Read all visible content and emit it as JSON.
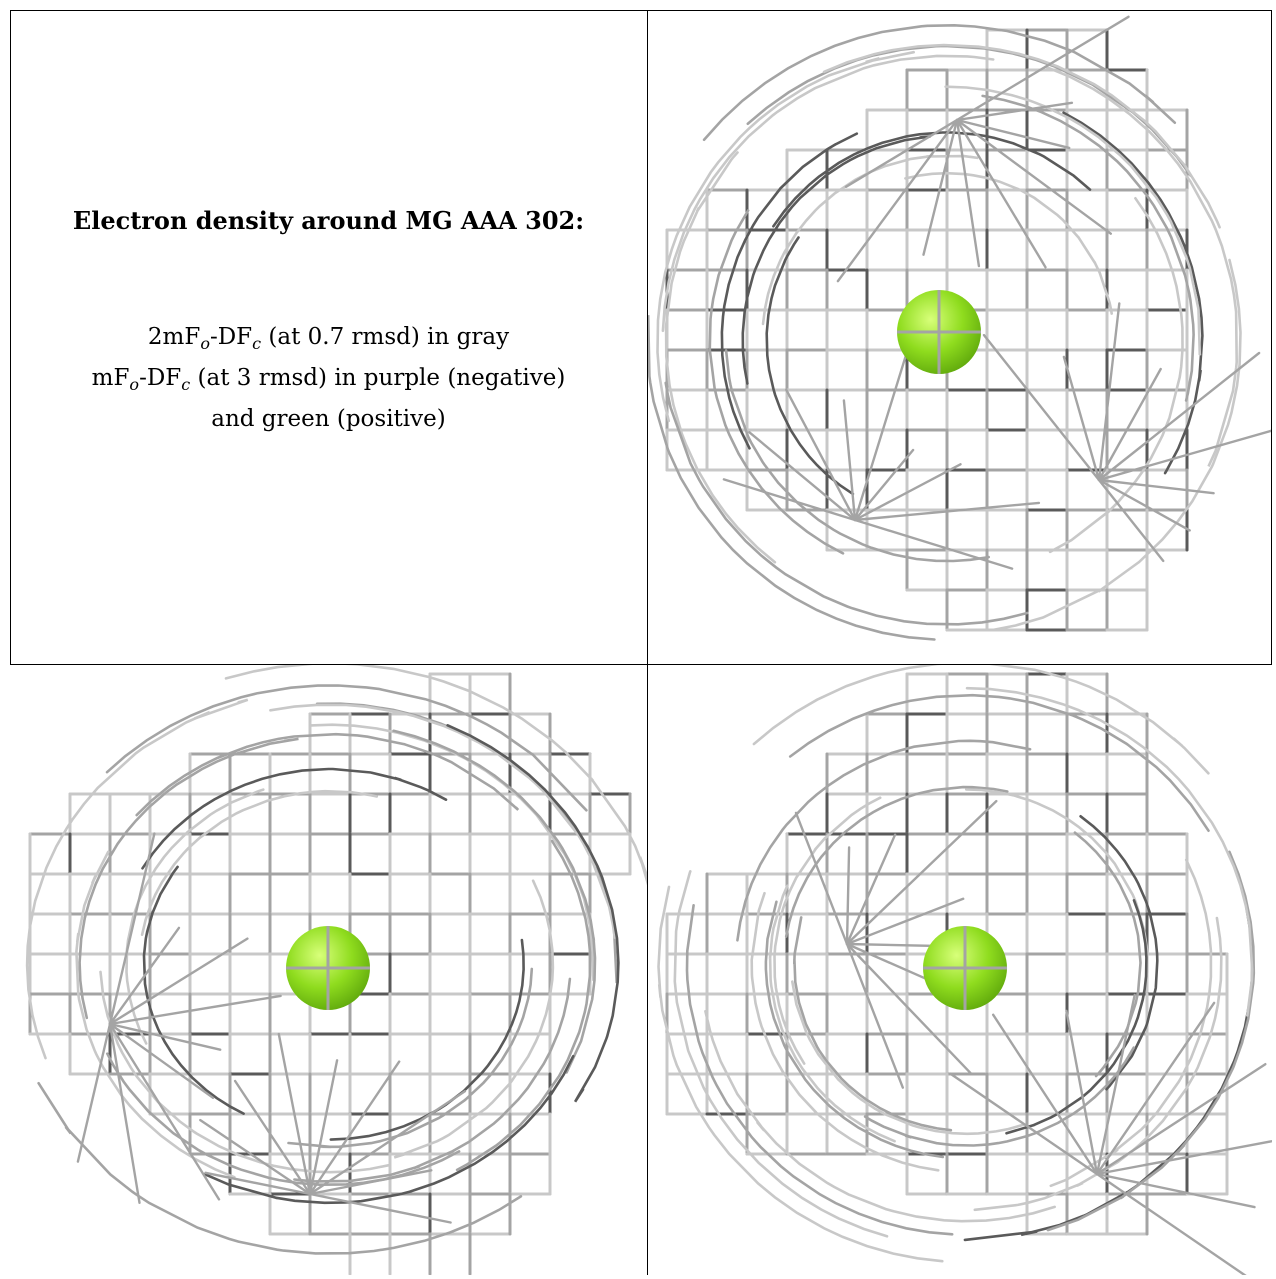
{
  "caption": {
    "title": "Electron density around MG AAA 302:",
    "line1": {
      "pre": "2mF",
      "sub1": "o",
      "mid": "-DF",
      "sub2": "c",
      "post": " (at 0.7 rmsd) in gray"
    },
    "line2": {
      "pre": "mF",
      "sub1": "o",
      "mid": "-DF",
      "sub2": "c",
      "post": " (at 3 rmsd) in purple (negative)"
    },
    "line3": "and green (positive)"
  },
  "colors": {
    "mesh_light": "#c8c8c8",
    "mesh_mid": "#a4a4a4",
    "mesh_dark": "#5a5a5a",
    "ion_green": "#8fdc1e",
    "ion_dark": "#5fa80c",
    "border": "#000000"
  },
  "views": [
    {
      "id": "view-1",
      "ion": "MG"
    },
    {
      "id": "view-2",
      "ion": "MG"
    },
    {
      "id": "view-3",
      "ion": "MG"
    }
  ]
}
